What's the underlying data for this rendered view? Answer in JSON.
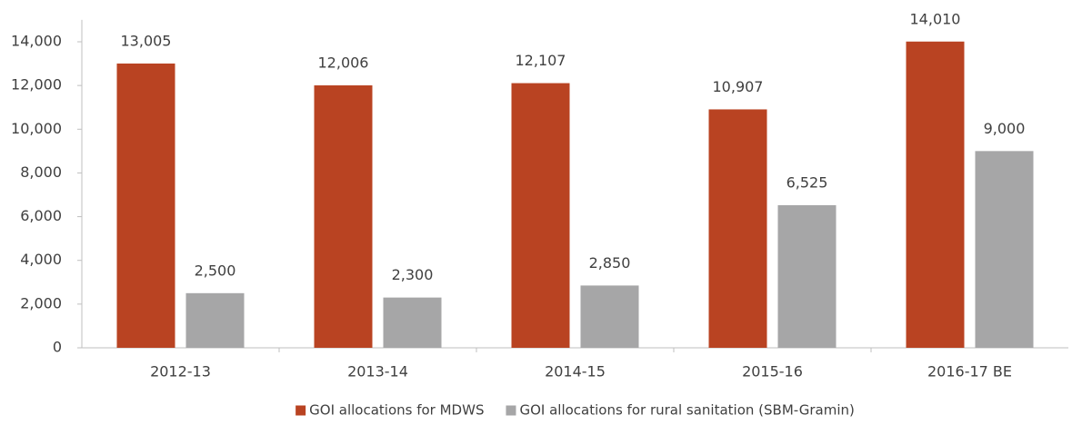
{
  "chart_data": {
    "type": "bar",
    "categories": [
      "2012-13",
      "2013-14",
      "2014-15",
      "2015-16",
      "2016-17 BE"
    ],
    "series": [
      {
        "name": "GOI allocations for MDWS",
        "color": "#b94322",
        "values": [
          13005,
          12006,
          12107,
          10907,
          14010
        ],
        "value_labels": [
          "13,005",
          "12,006",
          "12,107",
          "10,907",
          "14,010"
        ]
      },
      {
        "name": "GOI allocations for rural sanitation (SBM-Gramin)",
        "color": "#a6a6a7",
        "values": [
          2500,
          2300,
          2850,
          6525,
          9000
        ],
        "value_labels": [
          "2,500",
          "2,300",
          "2,850",
          "6,525",
          "9,000"
        ]
      }
    ],
    "ylim": [
      0,
      15000
    ],
    "yticks": [
      0,
      {
        "value": 2000,
        "label": "2,000"
      },
      {
        "value": 4000,
        "label": "4,000"
      },
      {
        "value": 6000,
        "label": "6,000"
      },
      {
        "value": 8000,
        "label": "8,000"
      },
      {
        "value": 10000,
        "label": "10,000"
      },
      {
        "value": 12000,
        "label": "12,000"
      },
      {
        "value": 14000,
        "label": "14,000"
      }
    ],
    "grid": false,
    "legend": "bottom"
  }
}
